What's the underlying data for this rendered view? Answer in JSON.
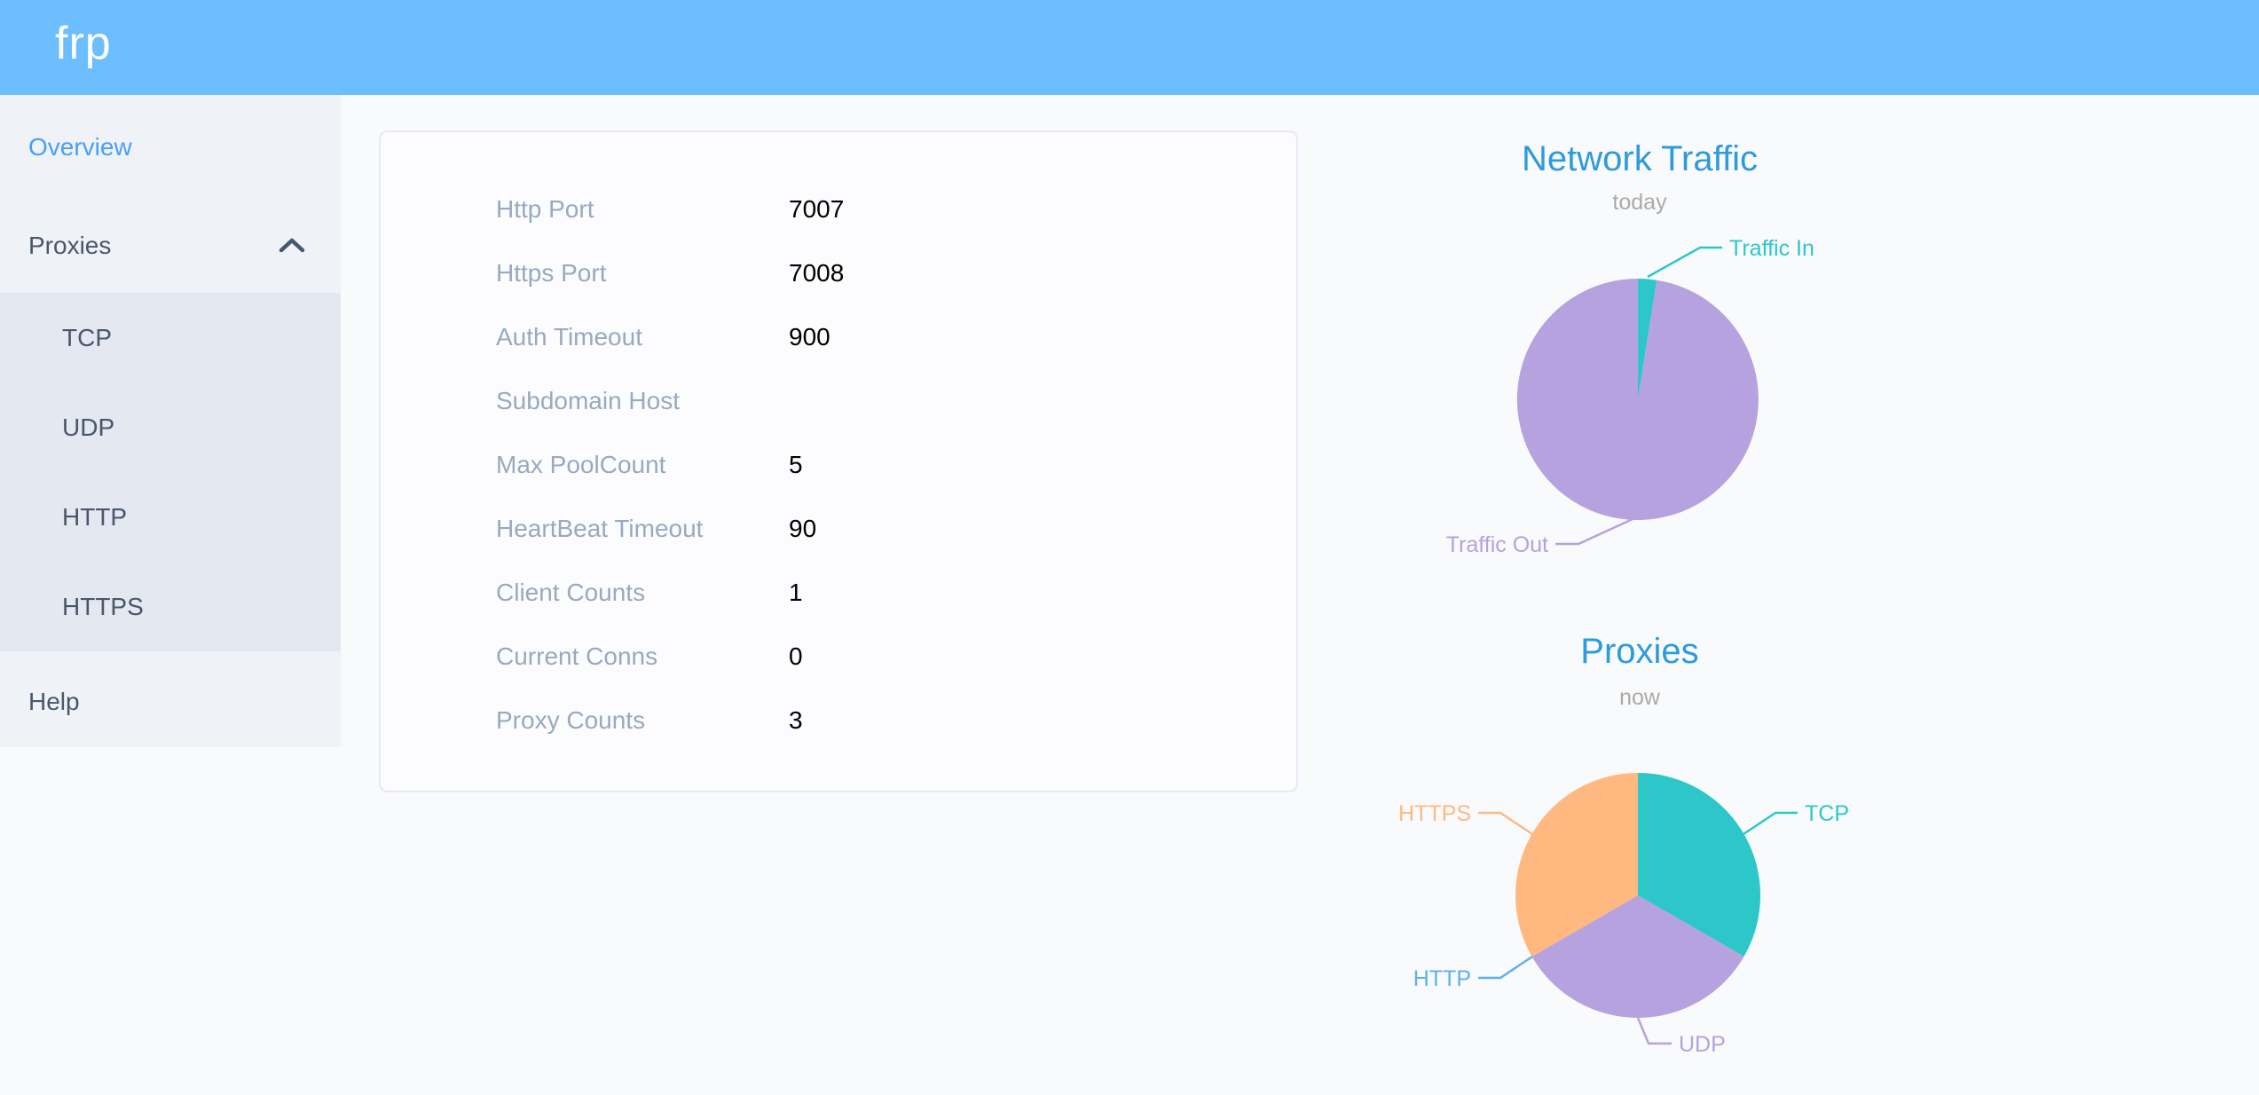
{
  "header": {
    "logo": "frp"
  },
  "sidebar": {
    "items": {
      "overview": {
        "label": "Overview",
        "active": true
      },
      "proxies": {
        "label": "Proxies",
        "expanded": true
      },
      "help": {
        "label": "Help"
      }
    },
    "proxies_children": [
      {
        "label": "TCP"
      },
      {
        "label": "UDP"
      },
      {
        "label": "HTTP"
      },
      {
        "label": "HTTPS"
      }
    ]
  },
  "server_info": {
    "rows": [
      {
        "label": "Http Port",
        "value": "7007"
      },
      {
        "label": "Https Port",
        "value": "7008"
      },
      {
        "label": "Auth Timeout",
        "value": "900"
      },
      {
        "label": "Subdomain Host",
        "value": ""
      },
      {
        "label": "Max PoolCount",
        "value": "5"
      },
      {
        "label": "HeartBeat Timeout",
        "value": "90"
      },
      {
        "label": "Client Counts",
        "value": "1"
      },
      {
        "label": "Current Conns",
        "value": "0"
      },
      {
        "label": "Proxy Counts",
        "value": "3"
      }
    ]
  },
  "chart_data": [
    {
      "type": "pie",
      "title": "Network Traffic",
      "subtitle": "today",
      "legend_position": "callout-labels",
      "slices": [
        {
          "label": "Traffic In",
          "value": 2.5,
          "color": "#2EC7C9"
        },
        {
          "label": "Traffic Out",
          "value": 97.5,
          "color": "#B6A2DE"
        }
      ],
      "values_unit": "percent-of-pie"
    },
    {
      "type": "pie",
      "title": "Proxies",
      "subtitle": "now",
      "legend_position": "callout-labels",
      "slices": [
        {
          "label": "TCP",
          "value": 1,
          "color": "#2EC7C9"
        },
        {
          "label": "UDP",
          "value": 1,
          "color": "#B6A2DE"
        },
        {
          "label": "HTTP",
          "value": 0,
          "color": "#5AB1EF"
        },
        {
          "label": "HTTPS",
          "value": 1,
          "color": "#FFB980"
        }
      ],
      "values_unit": "proxy-count"
    }
  ],
  "colors": {
    "header_bg": "#6CBEFE",
    "sidebar_bg": "#EFF2F7",
    "submenu_bg": "#E4E8F1",
    "menu_text": "#48576A",
    "menu_active": "#4A9EF8",
    "chart_title": "#2E9BDC",
    "chart_subtitle": "#AAAAAA",
    "card_label": "#99A9BF",
    "card_value": "#000000"
  }
}
